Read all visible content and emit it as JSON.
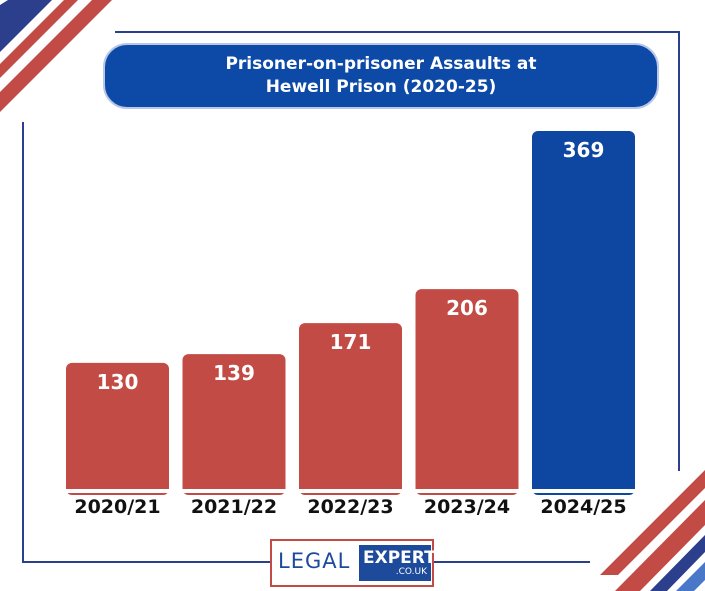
{
  "title": {
    "line1": "Prisoner-on-prisoner Assaults at",
    "line2": "Hewell Prison (2020-25)"
  },
  "chart_data": {
    "type": "bar",
    "title": "Prisoner-on-prisoner Assaults at Hewell Prison (2020-25)",
    "categories": [
      "2020/21",
      "2021/22",
      "2022/23",
      "2023/24",
      "2024/25"
    ],
    "values": [
      130,
      139,
      171,
      206,
      369
    ],
    "bar_colors": [
      "#c34b45",
      "#c34b45",
      "#c34b45",
      "#c34b45",
      "#0d47a1"
    ],
    "xlabel": "",
    "ylabel": "",
    "grid": false,
    "data_labels": true
  },
  "colors": {
    "accent_blue": "#0d4aa8",
    "accent_red": "#c34b45",
    "navy": "#2c3f8c"
  },
  "logo": {
    "legal": "LEGAL",
    "expert": "EXPERT",
    "domain": ".CO.UK"
  }
}
